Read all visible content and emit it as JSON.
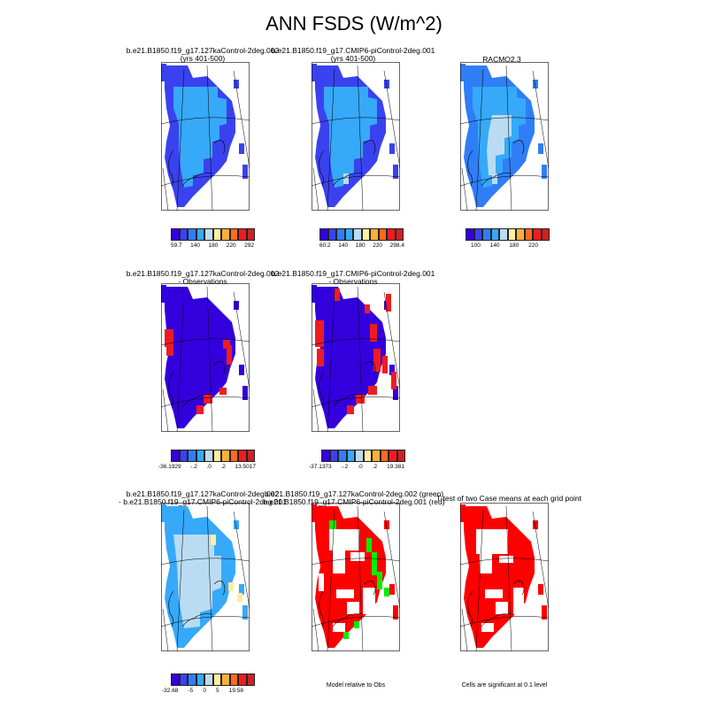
{
  "title": "ANN FSDS (W/m^2)",
  "colors": {
    "abs_scale": [
      "#3300dd",
      "#3a42f0",
      "#2f7ef7",
      "#36a9f9",
      "#b9dcf2",
      "#ffeea0",
      "#ffae3a",
      "#ff6a1c",
      "#ee1c22",
      "#cc2222"
    ],
    "diff_scale": [
      "#3300dd",
      "#3a42f0",
      "#2f7ef7",
      "#36a9f9",
      "#b9dcf2",
      "#ffeea0",
      "#ffae3a",
      "#ff6a1c",
      "#ee1c22",
      "#cc2222"
    ],
    "sig_a": "#00ee00",
    "sig_b": "#ff0000"
  },
  "panels": {
    "p1": {
      "line1": "b.e21.B1850.f19_g17.127kaControl-2deg.002",
      "line2": "(yrs 401-500)",
      "ticks": [
        "59.7",
        "140",
        "180",
        "220",
        "292"
      ]
    },
    "p2": {
      "line1": "b.e21.B1850.f19_g17.CMIP6-piControl-2deg.001",
      "line2": "(yrs 401-500)",
      "ticks": [
        "60.2",
        "140",
        "180",
        "220",
        "298.4"
      ]
    },
    "p3": {
      "line1": "RACMO2.3",
      "ticks": [
        "100",
        "140",
        "180",
        "220"
      ]
    },
    "p4": {
      "line1": "b.e21.B1850.f19_g17.127kaControl-2deg.002",
      "line2": "- Observations",
      "ticks": [
        "-36.1929",
        "-.2",
        ".0",
        ".2",
        "13.5017"
      ]
    },
    "p5": {
      "line1": "b.e21.B1850.f19_g17.CMIP6-piControl-2deg.001",
      "line2": "- Observations",
      "ticks": [
        "-37.1373",
        "-.2",
        ".0",
        ".2",
        "19.381"
      ]
    },
    "p7": {
      "line1": "b.e21.B1850.f19_g17.127kaControl-2deg.002",
      "line2": "- b.e21.B1850.f19_g17.CMIP6-piControl-2deg.001",
      "ticks": [
        "-32.68",
        "-5",
        "0",
        "5",
        "19.58"
      ]
    },
    "p8": {
      "line1": "b.e21.B1850.f19_g17.127kaControl-2deg.002 (green)",
      "line2": "b.e21.B1850.f19_g17.CMIP6-piControl-2deg.001 (red)",
      "note": "Model relative to Obs"
    },
    "p9": {
      "line1": "T-test of two Case means at each grid point",
      "note": "Cells are significant at 0.1 level"
    }
  }
}
